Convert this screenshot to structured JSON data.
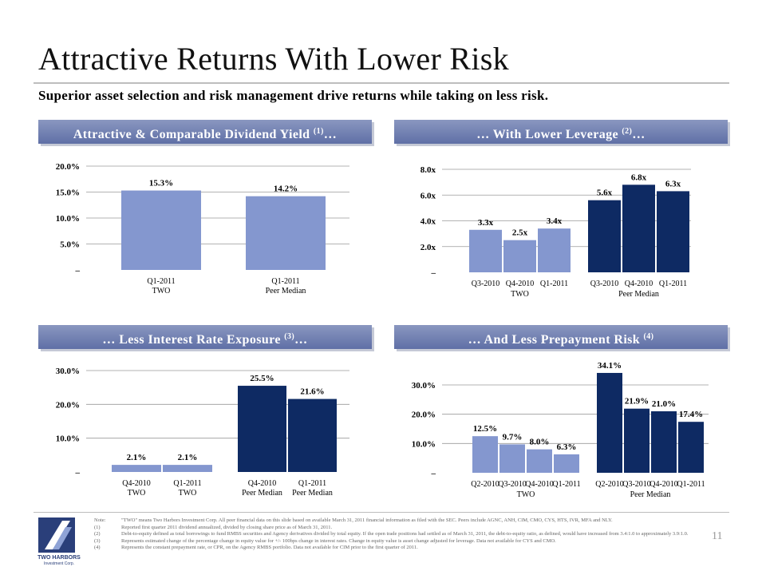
{
  "title": "Attractive Returns With Lower Risk",
  "subtitle": "Superior asset selection and risk management drive returns while taking on less risk.",
  "page_number": "11",
  "colors": {
    "light_bar": "#8497cf",
    "dark_bar": "#0e2a63",
    "band": "#6b7bb0"
  },
  "logo": {
    "name": "TWO HARBORS",
    "sub": "Investment Corp."
  },
  "notes": [
    {
      "key": "Note:",
      "text": "\"TWO\" means Two Harbors Investment Corp.  All peer financial data on this slide based on available March 31, 2011 financial information as filed with the SEC.  Peers include AGNC, ANH, CIM, CMO, CYS, HTS, IVR, MFA and NLY."
    },
    {
      "key": "(1)",
      "text": "Reported first quarter 2011 dividend annualized, divided by closing share price as of March 31, 2011."
    },
    {
      "key": "(2)",
      "text": "Debt-to-equity defined as total borrowings to fund RMBS securities and Agency derivatives divided by total equity. If the open trade positions had settled as of March 31, 2011, the debt-to-equity ratio, as defined, would have increased from 3.4:1.0 to approximately 3.9:1.0."
    },
    {
      "key": "(3)",
      "text": "Represents estimated change of the percentage change in equity value for +/- 100bps change in interest rates. Change in equity value is asset change adjusted for leverage.  Data not available for CYS and CMO."
    },
    {
      "key": "(4)",
      "text": "Represents the constant prepayment rate, or CPR, on the Agency RMBS portfolio. Data not available for CIM prior to the first quarter of 2011."
    }
  ],
  "chart_data": [
    {
      "type": "bar",
      "title": "Attractive & Comparable Dividend Yield",
      "title_suffix": "…",
      "footnote": "(1)",
      "yticks": [
        "20.0%",
        "15.0%",
        "10.0%",
        "5.0%",
        "–"
      ],
      "ylim": [
        0,
        20
      ],
      "categories": [
        {
          "x": "Q1-2011",
          "group": "TWO",
          "value": 15.3,
          "label": "15.3%",
          "shade": "light"
        },
        {
          "x": "Q1-2011",
          "group": "Peer Median",
          "value": 14.2,
          "label": "14.2%",
          "shade": "light"
        }
      ]
    },
    {
      "type": "bar",
      "title": "… With Lower Leverage",
      "title_suffix": "…",
      "footnote": "(2)",
      "yticks": [
        "8.0x",
        "6.0x",
        "4.0x",
        "2.0x",
        "–"
      ],
      "ylim": [
        0,
        8
      ],
      "groups": [
        "TWO",
        "Peer Median"
      ],
      "categories": [
        {
          "x": "Q3-2010",
          "group": "TWO",
          "value": 3.3,
          "label": "3.3x",
          "shade": "light"
        },
        {
          "x": "Q4-2010",
          "group": "TWO",
          "value": 2.5,
          "label": "2.5x",
          "shade": "light"
        },
        {
          "x": "Q1-2011",
          "group": "TWO",
          "value": 3.4,
          "label": "3.4x",
          "shade": "light"
        },
        {
          "x": "Q3-2010",
          "group": "Peer Median",
          "value": 5.6,
          "label": "5.6x",
          "shade": "dark"
        },
        {
          "x": "Q4-2010",
          "group": "Peer Median",
          "value": 6.8,
          "label": "6.8x",
          "shade": "dark"
        },
        {
          "x": "Q1-2011",
          "group": "Peer Median",
          "value": 6.3,
          "label": "6.3x",
          "shade": "dark"
        }
      ]
    },
    {
      "type": "bar",
      "title": "… Less Interest Rate Exposure",
      "title_suffix": "…",
      "footnote": "(3)",
      "yticks": [
        "30.0%",
        "20.0%",
        "10.0%",
        "–"
      ],
      "ylim": [
        0,
        30
      ],
      "categories": [
        {
          "x": "Q4-2010",
          "group": "TWO",
          "value": 2.1,
          "label": "2.1%",
          "shade": "light"
        },
        {
          "x": "Q1-2011",
          "group": "TWO",
          "value": 2.1,
          "label": "2.1%",
          "shade": "light"
        },
        {
          "x": "Q4-2010",
          "group": "Peer Median",
          "value": 25.5,
          "label": "25.5%",
          "shade": "dark"
        },
        {
          "x": "Q1-2011",
          "group": "Peer Median",
          "value": 21.6,
          "label": "21.6%",
          "shade": "dark"
        }
      ]
    },
    {
      "type": "bar",
      "title": "… And Less Prepayment Risk",
      "title_suffix": "",
      "footnote": "(4)",
      "yticks": [
        "30.0%",
        "20.0%",
        "10.0%",
        "–"
      ],
      "ylim": [
        0,
        30
      ],
      "groups": [
        "TWO",
        "Peer Median"
      ],
      "categories": [
        {
          "x": "Q2-2010",
          "group": "TWO",
          "value": 12.5,
          "label": "12.5%",
          "shade": "light"
        },
        {
          "x": "Q3-2010",
          "group": "TWO",
          "value": 9.7,
          "label": "9.7%",
          "shade": "light"
        },
        {
          "x": "Q4-2010",
          "group": "TWO",
          "value": 8.0,
          "label": "8.0%",
          "shade": "light"
        },
        {
          "x": "Q1-2011",
          "group": "TWO",
          "value": 6.3,
          "label": "6.3%",
          "shade": "light"
        },
        {
          "x": "Q2-2010",
          "group": "Peer Median",
          "value": 34.1,
          "label": "34.1%",
          "shade": "dark"
        },
        {
          "x": "Q3-2010",
          "group": "Peer Median",
          "value": 21.9,
          "label": "21.9%",
          "shade": "dark"
        },
        {
          "x": "Q4-2010",
          "group": "Peer Median",
          "value": 21.0,
          "label": "21.0%",
          "shade": "dark"
        },
        {
          "x": "Q1-2011",
          "group": "Peer Median",
          "value": 17.4,
          "label": "17.4%",
          "shade": "dark"
        }
      ]
    }
  ]
}
